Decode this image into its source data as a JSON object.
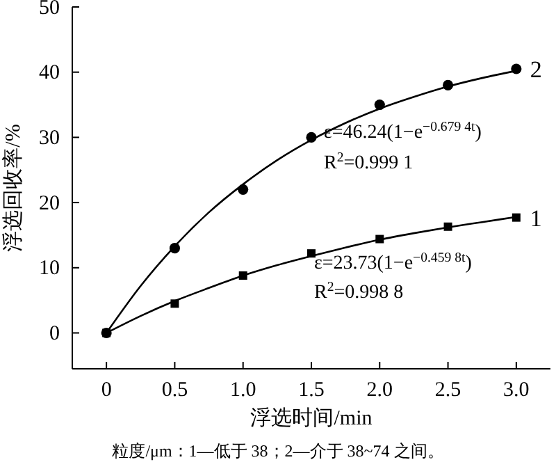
{
  "chart_data": {
    "type": "scatter",
    "xlabel": "浮选时间/min",
    "ylabel": "浮选回收率/%",
    "xlim": [
      -0.25,
      3.25
    ],
    "ylim": [
      -5.5,
      50
    ],
    "xticks": [
      0,
      {
        "value": 0.5,
        "label": "0.5"
      },
      {
        "value": 1,
        "label": "1.0"
      },
      {
        "value": 1.5,
        "label": "1.5"
      },
      {
        "value": 2,
        "label": "2.0"
      },
      {
        "value": 2.5,
        "label": "2.5"
      },
      {
        "value": 3,
        "label": "3.0"
      }
    ],
    "yticks": [
      0,
      10,
      20,
      30,
      40,
      50
    ],
    "grid": false,
    "legend": false,
    "x": [
      0,
      0.5,
      1,
      1.5,
      2,
      2.5,
      3
    ],
    "series": [
      {
        "name": "1",
        "marker": "square",
        "color": "#000000",
        "values": [
          0,
          4.5,
          8.8,
          12.2,
          14.4,
          16.3,
          17.7
        ]
      },
      {
        "name": "2",
        "marker": "circle",
        "color": "#000000",
        "values": [
          0,
          13,
          22,
          30,
          35,
          38,
          40.5
        ]
      },
      {
        "type": "line",
        "marker": "none",
        "color": "#000000",
        "x": [
          0,
          0.25,
          0.5,
          0.75,
          1,
          1.25,
          1.5,
          1.75,
          2,
          2.25,
          2.5,
          2.75,
          3
        ],
        "values": [
          0,
          7.2,
          13.3,
          18.5,
          22.8,
          26.5,
          29.6,
          32.2,
          34.4,
          36.2,
          37.8,
          39.1,
          40.2
        ]
      },
      {
        "type": "line",
        "marker": "none",
        "color": "#000000",
        "x": [
          0,
          0.25,
          0.5,
          0.75,
          1,
          1.25,
          1.5,
          1.75,
          2,
          2.25,
          2.5,
          2.75,
          3
        ],
        "values": [
          0,
          2.6,
          4.9,
          6.9,
          8.8,
          10.4,
          11.8,
          13.1,
          14.3,
          15.3,
          16.2,
          17,
          17.8
        ]
      }
    ],
    "annotations": [
      "ε=46.24(1−e$^{−0.679 4t}$)",
      "R$^{2}$=0.999 1",
      "ε=23.73(1−e$^{−0.459 8t}$)",
      "R$^{2}$=0.998 8",
      "粒度/μm：1—低于 38；2—介于 38~74 之间。"
    ]
  }
}
